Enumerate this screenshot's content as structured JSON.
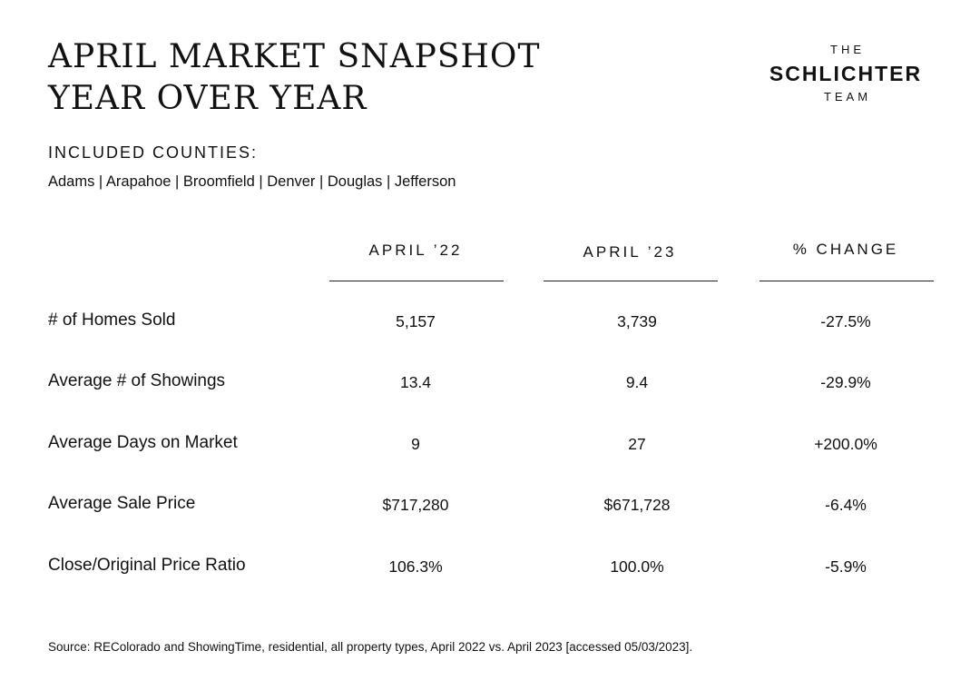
{
  "header": {
    "title_line1": "APRIL MARKET SNAPSHOT",
    "title_line2": "YEAR OVER YEAR"
  },
  "logo": {
    "top": "THE",
    "middle": "SCHLICHTER",
    "bottom": "TEAM"
  },
  "counties": {
    "heading": "INCLUDED COUNTIES:",
    "list": "Adams | Arapahoe | Broomfield | Denver | Douglas | Jefferson"
  },
  "table": {
    "columns": [
      "APRIL ’22",
      "APRIL ’23",
      "% CHANGE"
    ],
    "rows": [
      {
        "label": "# of Homes Sold",
        "values": [
          "5,157",
          "3,739",
          "-27.5%"
        ]
      },
      {
        "label": "Average # of Showings",
        "values": [
          "13.4",
          "9.4",
          "-29.9%"
        ]
      },
      {
        "label": "Average Days on Market",
        "values": [
          "9",
          "27",
          "+200.0%"
        ]
      },
      {
        "label": "Average Sale Price",
        "values": [
          "$717,280",
          "$671,728",
          "-6.4%"
        ]
      },
      {
        "label": "Close/Original Price Ratio",
        "values": [
          "106.3%",
          "100.0%",
          "-5.9%"
        ]
      }
    ]
  },
  "footer": {
    "source": "Source: REColorado and ShowingTime, residential, all property types, April 2022 vs. April 2023 [accessed 05/03/2023]."
  }
}
